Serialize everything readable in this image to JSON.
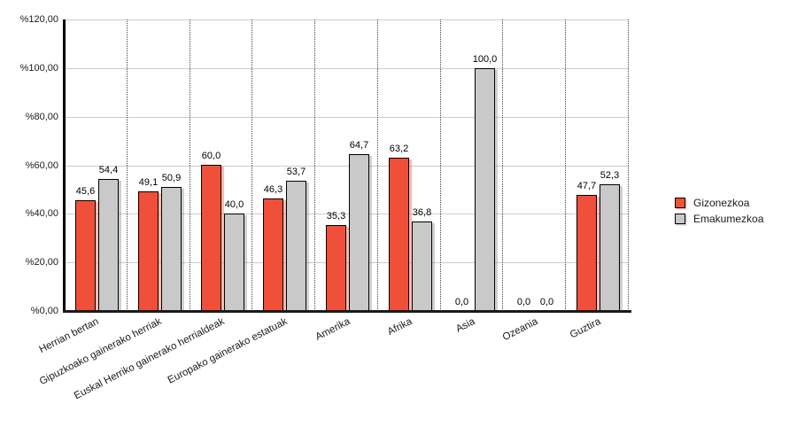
{
  "chart_data": {
    "type": "bar",
    "title": "",
    "xlabel": "",
    "ylabel": "",
    "categories": [
      "Herrian bertan",
      "Gipuzkoako gainerako herriak",
      "Euskal Herriko gainerako herrialdeak",
      "Europako gainerako estatuak",
      "Amerika",
      "Afrika",
      "Asia",
      "Ozeania",
      "Guztira"
    ],
    "series": [
      {
        "name": "Gizonezkoa",
        "color": "#f04f39",
        "shadow_color": "rgba(240,79,57,0.38)",
        "values": [
          45.6,
          49.1,
          60.0,
          46.3,
          35.3,
          63.2,
          0.0,
          0.0,
          47.7
        ],
        "value_labels": [
          "45,6",
          "49,1",
          "60,0",
          "46,3",
          "35,3",
          "63,2",
          "0,0",
          "0,0",
          "47,7"
        ]
      },
      {
        "name": "Emakumezkoa",
        "color": "#c9c9c9",
        "shadow_color": "rgba(120,120,120,0.35)",
        "values": [
          54.4,
          50.9,
          40.0,
          53.7,
          64.7,
          36.8,
          100.0,
          0.0,
          52.3
        ],
        "value_labels": [
          "54,4",
          "50,9",
          "40,0",
          "53,7",
          "64,7",
          "36,8",
          "100,0",
          "0,0",
          "52,3"
        ]
      }
    ],
    "y_ticks": [
      "%0,00",
      "%20,00",
      "%40,00",
      "%60,00",
      "%80,00",
      "%100,00",
      "%120,00"
    ],
    "ylim": [
      0,
      120
    ],
    "grid": true,
    "legend_position": "right",
    "colors": {
      "axis": "#000000",
      "gridline": "#cccccc",
      "separator": "#444444",
      "text": "#1a1a1a",
      "background": "#ffffff"
    }
  }
}
